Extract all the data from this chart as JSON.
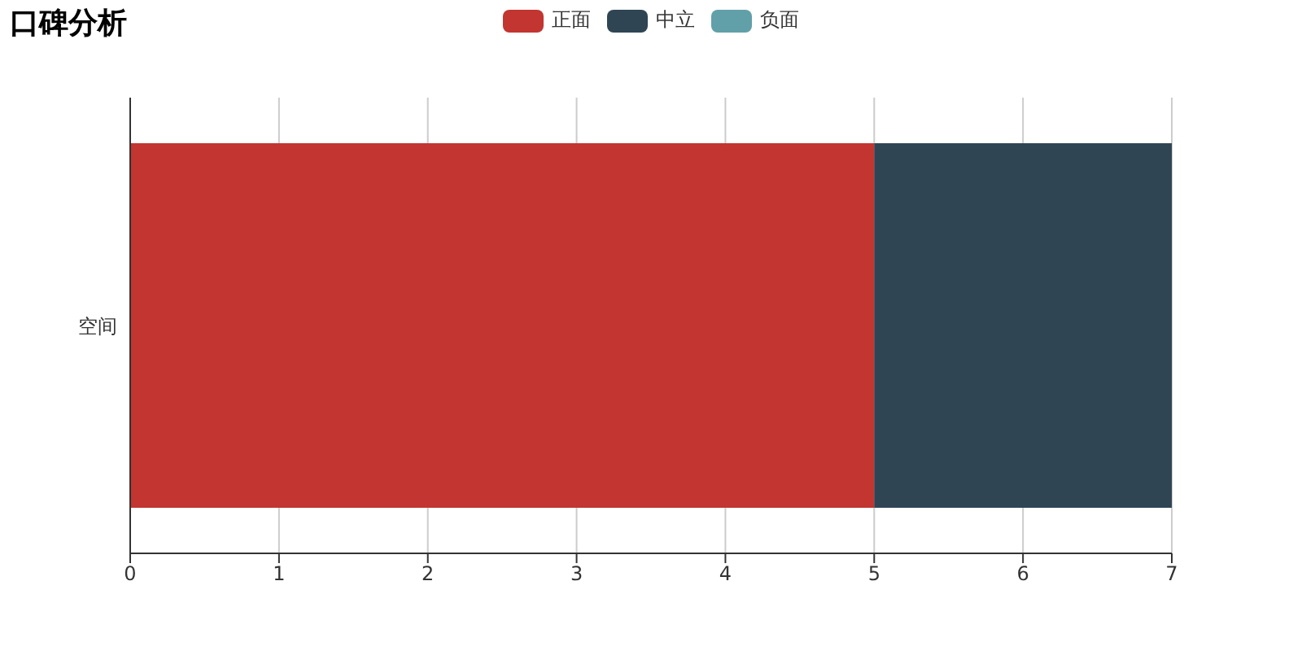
{
  "chart_data": {
    "type": "bar",
    "title": "口碑分析",
    "orientation": "horizontal",
    "stacked": true,
    "categories": [
      "空间"
    ],
    "series": [
      {
        "name": "正面",
        "color": "#c23531",
        "values": [
          5
        ]
      },
      {
        "name": "中立",
        "color": "#2f4554",
        "values": [
          2
        ]
      },
      {
        "name": "负面",
        "color": "#61a0a8",
        "values": [
          0
        ]
      }
    ],
    "xlim": [
      0,
      7
    ],
    "xticks": [
      0,
      1,
      2,
      3,
      4,
      5,
      6,
      7
    ],
    "grid": "x",
    "legend": "top"
  }
}
